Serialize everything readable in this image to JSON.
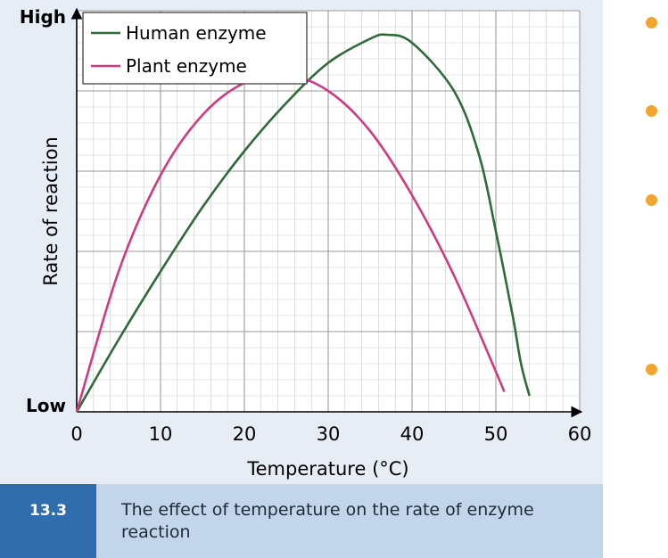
{
  "figure": {
    "number": "13.3",
    "caption": "The effect of temperature on the rate of enzyme  reaction"
  },
  "colors": {
    "human": "#2e6b38",
    "plant": "#d13a83",
    "bullet": "#f2a52e",
    "grid_minor": "#c9c9c9",
    "grid_major": "#9a9a9a"
  },
  "chart_data": {
    "type": "line",
    "title": "",
    "xlabel": "Temperature (°C)",
    "ylabel": "Rate of reaction",
    "xlim": [
      0,
      60
    ],
    "ylim": [
      0,
      100
    ],
    "x_ticks": [
      0,
      10,
      20,
      30,
      40,
      50,
      60
    ],
    "y_tick_labels": {
      "top": "High",
      "bottom": "Low"
    },
    "grid": true,
    "legend_position": "top-left",
    "series": [
      {
        "name": "Human enzyme",
        "color": "#2e6b38",
        "x": [
          0,
          5,
          10,
          15,
          20,
          25,
          30,
          35,
          37,
          40,
          45,
          48,
          50,
          52,
          53,
          54
        ],
        "y": [
          0,
          18,
          35,
          51,
          65,
          77,
          87,
          93,
          94,
          92,
          80,
          64,
          45,
          24,
          12,
          4
        ]
      },
      {
        "name": "Plant enzyme",
        "color": "#d13a83",
        "x": [
          0,
          5,
          10,
          15,
          20,
          25,
          30,
          35,
          40,
          45,
          50,
          51
        ],
        "y": [
          0,
          35,
          59,
          74,
          82,
          84,
          80,
          70,
          54,
          34,
          10,
          5
        ]
      }
    ]
  },
  "side_bullets": [
    {
      "name": "bullet-1"
    },
    {
      "name": "bullet-2"
    },
    {
      "name": "bullet-3"
    },
    {
      "name": "bullet-4"
    }
  ]
}
